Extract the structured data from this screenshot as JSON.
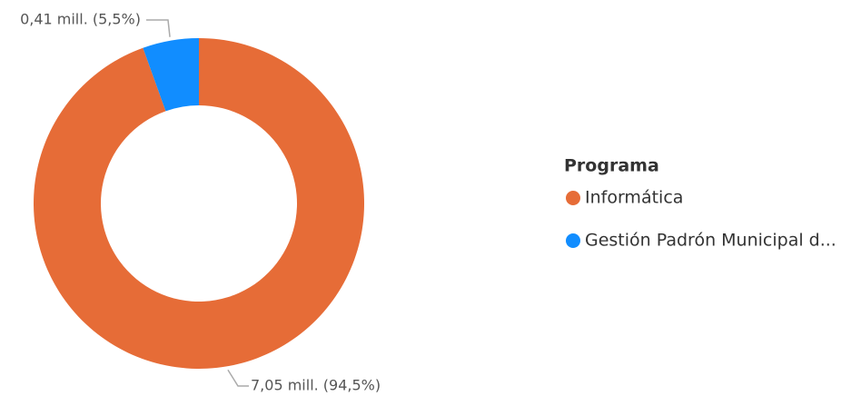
{
  "chart_data": {
    "type": "donut",
    "legend_title": "Programa",
    "categories": [
      "Informática",
      "Gestión Padrón Municipal d..."
    ],
    "values": [
      7.05,
      0.41
    ],
    "value_labels": [
      "7,05 mill. (94,5%)",
      "0,41 mill. (5,5%)"
    ],
    "colors": [
      "#E66C37",
      "#118DFF"
    ],
    "legend": "right"
  }
}
